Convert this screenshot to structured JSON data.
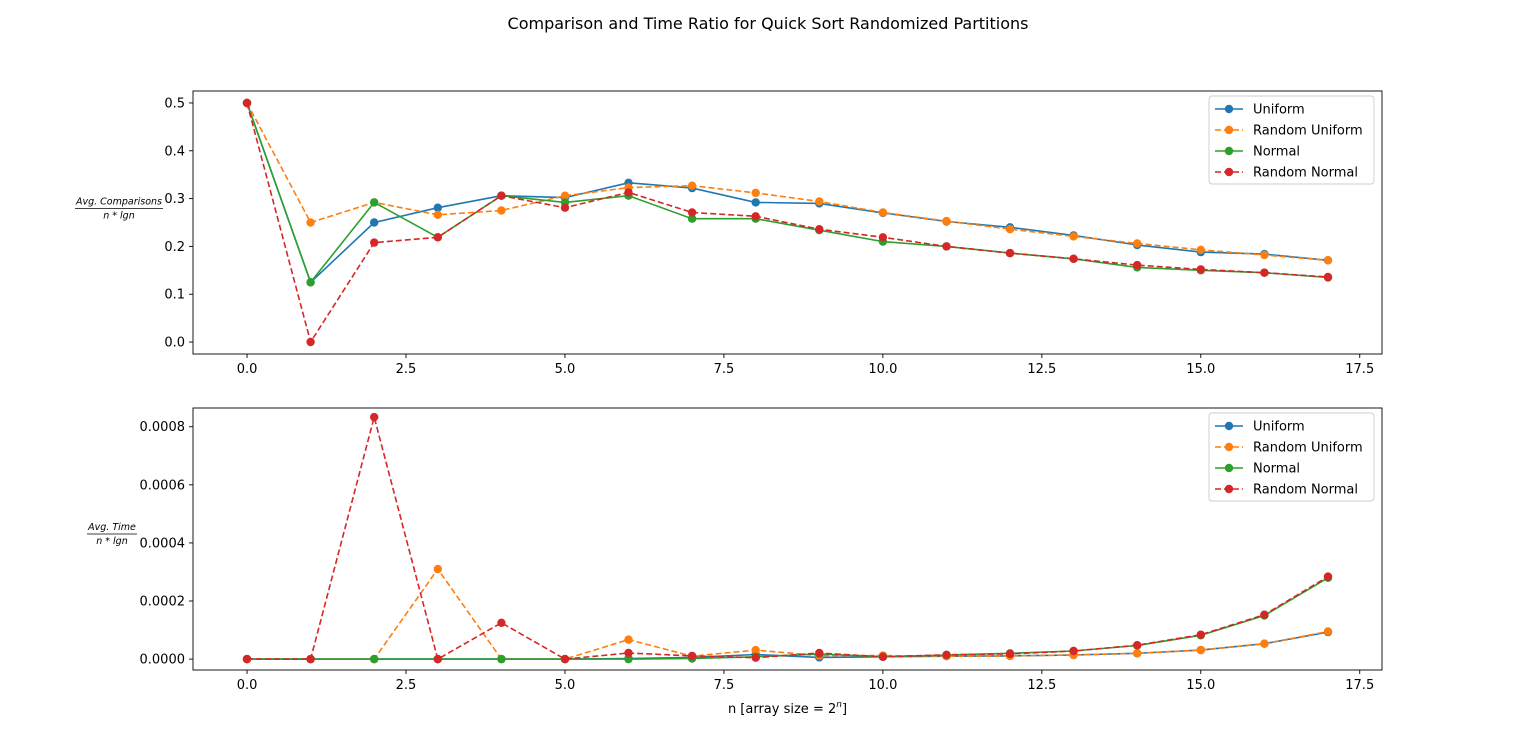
{
  "figure": {
    "title": "Comparison and Time Ratio for Quick Sort Randomized Partitions"
  },
  "colors": {
    "Uniform": "#1f77b4",
    "Random Uniform": "#ff7f0e",
    "Normal": "#2ca02c",
    "Random Normal": "#d62728"
  },
  "chart_data": [
    {
      "type": "line",
      "title": "",
      "ylabel_numerator": "Avg. Comparisons",
      "ylabel_denominator": "n * lgn",
      "xlabel": "",
      "xlim": [
        -0.85,
        17.85
      ],
      "ylim": [
        -0.025,
        0.525
      ],
      "xticks": [
        0.0,
        2.5,
        5.0,
        7.5,
        10.0,
        12.5,
        15.0,
        17.5
      ],
      "xtick_labels": [
        "0.0",
        "2.5",
        "5.0",
        "7.5",
        "10.0",
        "12.5",
        "15.0",
        "17.5"
      ],
      "yticks": [
        0.0,
        0.1,
        0.2,
        0.3,
        0.4,
        0.5
      ],
      "ytick_labels": [
        "0.0",
        "0.1",
        "0.2",
        "0.3",
        "0.4",
        "0.5"
      ],
      "legend_position": "top-right",
      "x": [
        0,
        1,
        2,
        3,
        4,
        5,
        6,
        7,
        8,
        9,
        10,
        11,
        12,
        13,
        14,
        15,
        16,
        17
      ],
      "series": [
        {
          "name": "Uniform",
          "style": "solid",
          "values": [
            0.5,
            0.125,
            0.25,
            0.281,
            0.306,
            0.302,
            0.333,
            0.322,
            0.292,
            0.29,
            0.27,
            0.252,
            0.24,
            0.223,
            0.203,
            0.188,
            0.184,
            0.171
          ]
        },
        {
          "name": "Random Uniform",
          "style": "dashed",
          "values": [
            0.5,
            0.25,
            0.292,
            0.266,
            0.275,
            0.306,
            0.323,
            0.327,
            0.312,
            0.294,
            0.271,
            0.253,
            0.236,
            0.221,
            0.206,
            0.193,
            0.182,
            0.171
          ]
        },
        {
          "name": "Normal",
          "style": "solid",
          "values": [
            0.5,
            0.125,
            0.292,
            0.219,
            0.306,
            0.292,
            0.306,
            0.258,
            0.258,
            0.234,
            0.21,
            0.2,
            0.186,
            0.174,
            0.156,
            0.15,
            0.145,
            0.135
          ]
        },
        {
          "name": "Random Normal",
          "style": "dashed",
          "values": [
            0.5,
            0.0,
            0.208,
            0.219,
            0.306,
            0.281,
            0.313,
            0.271,
            0.263,
            0.236,
            0.219,
            0.2,
            0.186,
            0.174,
            0.161,
            0.152,
            0.145,
            0.136
          ]
        }
      ]
    },
    {
      "type": "line",
      "title": "",
      "ylabel_numerator": "Avg. Time",
      "ylabel_denominator": "n * lgn",
      "xlabel_prefix": "n [array size = ",
      "xlabel_base": "2",
      "xlabel_exp": "n",
      "xlabel_suffix": "]",
      "xlim": [
        -0.85,
        17.85
      ],
      "ylim": [
        -3.75e-05,
        0.0008645
      ],
      "xticks": [
        0.0,
        2.5,
        5.0,
        7.5,
        10.0,
        12.5,
        15.0,
        17.5
      ],
      "xtick_labels": [
        "0.0",
        "2.5",
        "5.0",
        "7.5",
        "10.0",
        "12.5",
        "15.0",
        "17.5"
      ],
      "yticks": [
        0.0,
        0.0002,
        0.0004,
        0.0006,
        0.0008
      ],
      "ytick_labels": [
        "0.0000",
        "0.0002",
        "0.0004",
        "0.0006",
        "0.0008"
      ],
      "legend_position": "top-right",
      "x": [
        0,
        1,
        2,
        3,
        4,
        5,
        6,
        7,
        8,
        9,
        10,
        11,
        12,
        13,
        14,
        15,
        16,
        17
      ],
      "series": [
        {
          "name": "Uniform",
          "style": "solid",
          "values": [
            0,
            0,
            0,
            0,
            0,
            0,
            2e-06,
            6e-06,
            1.6e-05,
            6e-06,
            8e-06,
            1e-05,
            1.1e-05,
            1.4e-05,
            2e-05,
            3.1e-05,
            5.3e-05,
            9.3e-05
          ]
        },
        {
          "name": "Random Uniform",
          "style": "dashed",
          "values": [
            0,
            0,
            0,
            0.00031,
            0,
            0,
            6.7e-05,
            1e-05,
            3.1e-05,
            1.2e-05,
            1.2e-05,
            1e-05,
            1.1e-05,
            1.4e-05,
            2e-05,
            3.1e-05,
            5.3e-05,
            9.5e-05
          ]
        },
        {
          "name": "Normal",
          "style": "solid",
          "values": [
            0,
            0,
            0,
            0,
            0,
            0,
            0,
            2e-06,
            8e-06,
            1.8e-05,
            8e-06,
            1.4e-05,
            2e-05,
            2.8e-05,
            4.7e-05,
            8.2e-05,
            0.00015,
            0.00028
          ]
        },
        {
          "name": "Random Normal",
          "style": "dashed",
          "values": [
            0,
            0,
            0.000833,
            0,
            0.000125,
            0,
            2.1e-05,
            1.1e-05,
            5e-06,
            2.1e-05,
            8e-06,
            1.5e-05,
            1.8e-05,
            2.8e-05,
            4.8e-05,
            8.4e-05,
            0.000153,
            0.000284
          ]
        }
      ]
    }
  ]
}
